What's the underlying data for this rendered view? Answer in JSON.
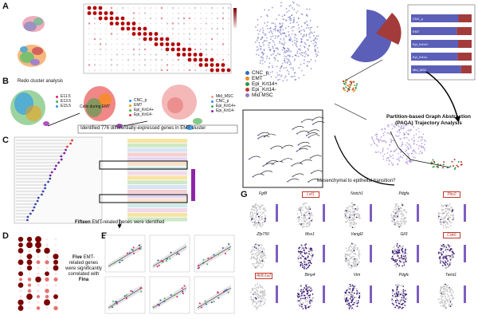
{
  "panels": {
    "a": "A",
    "b": "B",
    "c": "C",
    "d": "D",
    "e": "E",
    "f": "F",
    "g": "G"
  },
  "panel_b": {
    "header": "Redo cluster analysis",
    "note": "Cells during EMT",
    "footer": "Identified 776 differentially-expressed genes in EMT cluster",
    "legend_stage": [
      "E11.5",
      "E13.5",
      "E15.5"
    ],
    "legend_cells": [
      "CNC_p",
      "EMT",
      "Epi_Krt14+",
      "Epi_Krt14-"
    ],
    "legend_right": [
      "Mid_MSC",
      "CNC_p",
      "Epi_Krt14+",
      "Epi_Krt14-"
    ]
  },
  "panel_c": {
    "callout_bold": "Fifteen",
    "callout_rest": "EMT-related genes were identified"
  },
  "panel_d": {
    "callout_bold": "Five",
    "callout_mid": "EMT-related genes were significantly correlated with",
    "callout_gene": "Fina"
  },
  "panel_f": {
    "legend": [
      {
        "label": "CNC_p",
        "color": "#2f6eb5"
      },
      {
        "label": "EMT",
        "color": "#e98a2a"
      },
      {
        "label": "Epi_Krt14+",
        "color": "#2e9b45"
      },
      {
        "label": "Epi_Krt14-",
        "color": "#c0392b"
      },
      {
        "label": "Mid MSC",
        "color": "#8e7cc3"
      }
    ],
    "paga_title": "Partition-based Graph Abstraction (PAGA) Trajectory Analysis",
    "transition": "Mesenchymal to epithelial transition?",
    "bar_rows": [
      "CNC_p",
      "EMT",
      "Epi_Krt14+",
      "Epi_Krt14-",
      "Mid_MSC"
    ],
    "bar_colors": {
      "a": "#5b5fb8",
      "b": "#a33b3b"
    }
  },
  "panel_g": {
    "genes": [
      "Fgf8",
      "Lef1",
      "Notch1",
      "Pdgfa",
      "Pitx2",
      "Zfp750",
      "Msx1",
      "Vangl2",
      "Gli3",
      "Cdk6",
      "Aldh1a2",
      "Bmp4",
      "Vim",
      "Pdgfc",
      "Twist1"
    ],
    "boxed": [
      1,
      4,
      9,
      10
    ],
    "axis_x": "UMAP_1",
    "axis_y": "UMAP_2"
  },
  "colors": {
    "red": "#c0392b",
    "darkred": "#7b0000",
    "purple": "#5a2d82",
    "grey": "#b5b5b5"
  }
}
